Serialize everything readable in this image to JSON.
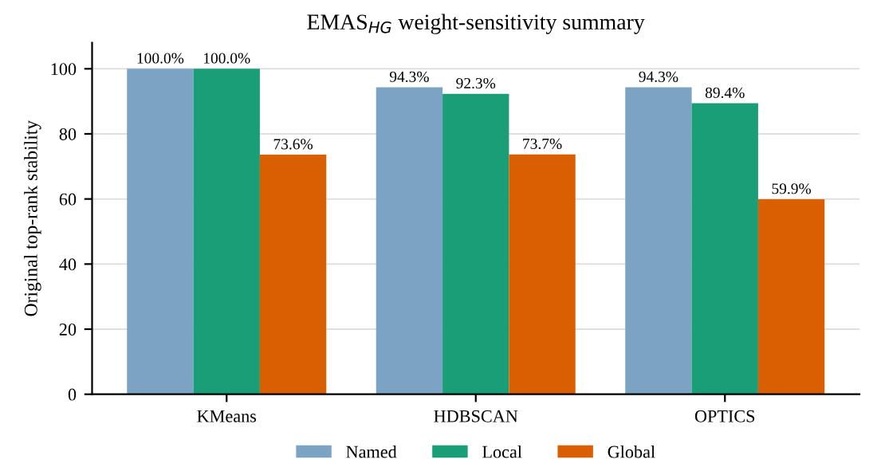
{
  "chart_data": {
    "type": "bar",
    "title": "EMAS$_{HG}$ weight-sensitivity summary",
    "ylabel": "Original top-rank stability",
    "categories": [
      "KMeans",
      "HDBSCAN",
      "OPTICS"
    ],
    "series": [
      {
        "name": "Named",
        "color": "#7ba3c4",
        "values": [
          100.0,
          94.3,
          94.3
        ],
        "value_labels": [
          "100.0%",
          "94.3%",
          "94.3%"
        ]
      },
      {
        "name": "Local",
        "color": "#1a9e77",
        "values": [
          100.0,
          92.3,
          89.4
        ],
        "value_labels": [
          "100.0%",
          "92.3%",
          "89.4%"
        ]
      },
      {
        "name": "Global",
        "color": "#d95f02",
        "values": [
          73.6,
          73.7,
          59.9
        ],
        "value_labels": [
          "73.6%",
          "73.7%",
          "59.9%"
        ]
      }
    ],
    "ylim": [
      0,
      108
    ],
    "yticks": [
      0,
      20,
      40,
      60,
      80,
      100
    ],
    "grid": "y",
    "legend": "bottom"
  }
}
